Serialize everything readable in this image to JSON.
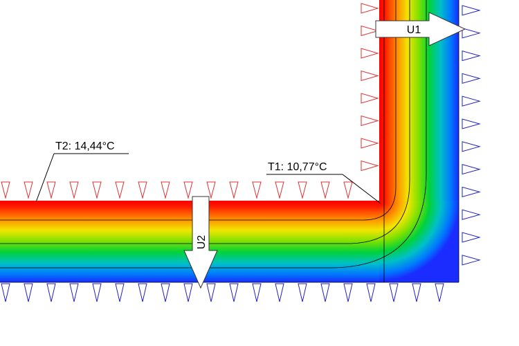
{
  "annotations": {
    "u1": "U1",
    "u2": "U2",
    "t1": "T1: 10,77°C",
    "t2": "T2: 14,44°C"
  }
}
